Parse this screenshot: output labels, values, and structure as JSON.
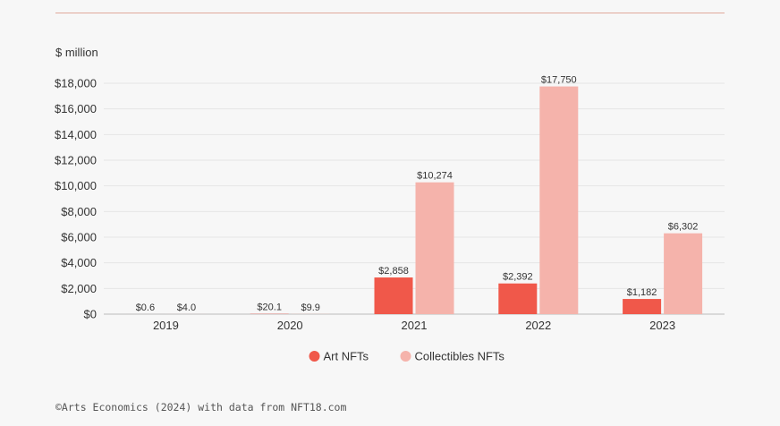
{
  "chart_data": {
    "type": "bar",
    "unit_label": "$ million",
    "categories": [
      "2019",
      "2020",
      "2021",
      "2022",
      "2023"
    ],
    "series": [
      {
        "name": "Art NFTs",
        "color": "#f0584a",
        "values": [
          0.6,
          20.1,
          2858,
          2392,
          1182
        ],
        "labels": [
          "$0.6",
          "$20.1",
          "$2,858",
          "$2,392",
          "$1,182"
        ]
      },
      {
        "name": "Collectibles NFTs",
        "color": "#f5b3ab",
        "values": [
          4.0,
          9.9,
          10274,
          17750,
          6302
        ],
        "labels": [
          "$4.0",
          "$9.9",
          "$10,274",
          "$17,750",
          "$6,302"
        ]
      }
    ],
    "ylim": [
      0,
      18000
    ],
    "yticks": [
      0,
      2000,
      4000,
      6000,
      8000,
      10000,
      12000,
      14000,
      16000,
      18000
    ],
    "ytick_labels": [
      "$0",
      "$2,000",
      "$4,000",
      "$6,000",
      "$8,000",
      "$10,000",
      "$12,000",
      "$14,000",
      "$16,000",
      "$18,000"
    ],
    "grid": true,
    "legend_position": "bottom-center",
    "xlabel": "",
    "ylabel": "$ million"
  },
  "source": "©Arts Economics (2024) with data from NFT18.com",
  "colors": {
    "grid": "#e6e6e6",
    "axis": "#bbbbbb",
    "text": "#333333",
    "rule": "#e0a99c"
  }
}
